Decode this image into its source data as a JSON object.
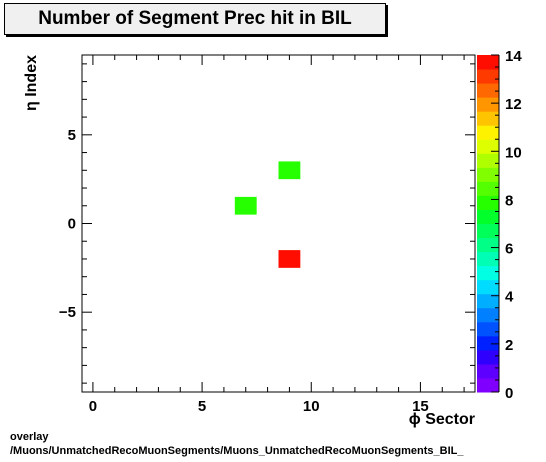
{
  "chart_data": {
    "type": "heatmap",
    "title": "Number of Segment Prec hit in BIL",
    "xlabel": "ϕ Sector",
    "ylabel": "η Index",
    "xlim": [
      -0.5,
      17.5
    ],
    "ylim": [
      -9.5,
      9.5
    ],
    "x_ticks": [
      0,
      5,
      10,
      15
    ],
    "y_ticks": [
      -5,
      0,
      5
    ],
    "cells": [
      {
        "x": 7,
        "y": 1,
        "value": 8
      },
      {
        "x": 9,
        "y": 3,
        "value": 8
      },
      {
        "x": 9,
        "y": -2,
        "value": 14
      }
    ],
    "colorbar": {
      "min": 0,
      "max": 14,
      "ticks": [
        0,
        2,
        4,
        6,
        8,
        10,
        12,
        14
      ],
      "colors": [
        "#7f00ff",
        "#5e00ff",
        "#3000ff",
        "#0021ff",
        "#0052ff",
        "#0080ff",
        "#00aeff",
        "#00dcff",
        "#00ffe3",
        "#00ffb5",
        "#00ff87",
        "#00ff59",
        "#00ff2b",
        "#25ff00",
        "#53ff00",
        "#81ff00",
        "#afff00",
        "#ddff00",
        "#fff200",
        "#ffc400",
        "#ff9600",
        "#ff6800",
        "#ff3a00",
        "#ff0d00"
      ]
    },
    "grid": false
  },
  "footer": {
    "line1": "overlay",
    "line2": "/Muons/UnmatchedRecoMuonSegments/Muons_UnmatchedRecoMuonSegments_BIL_"
  }
}
